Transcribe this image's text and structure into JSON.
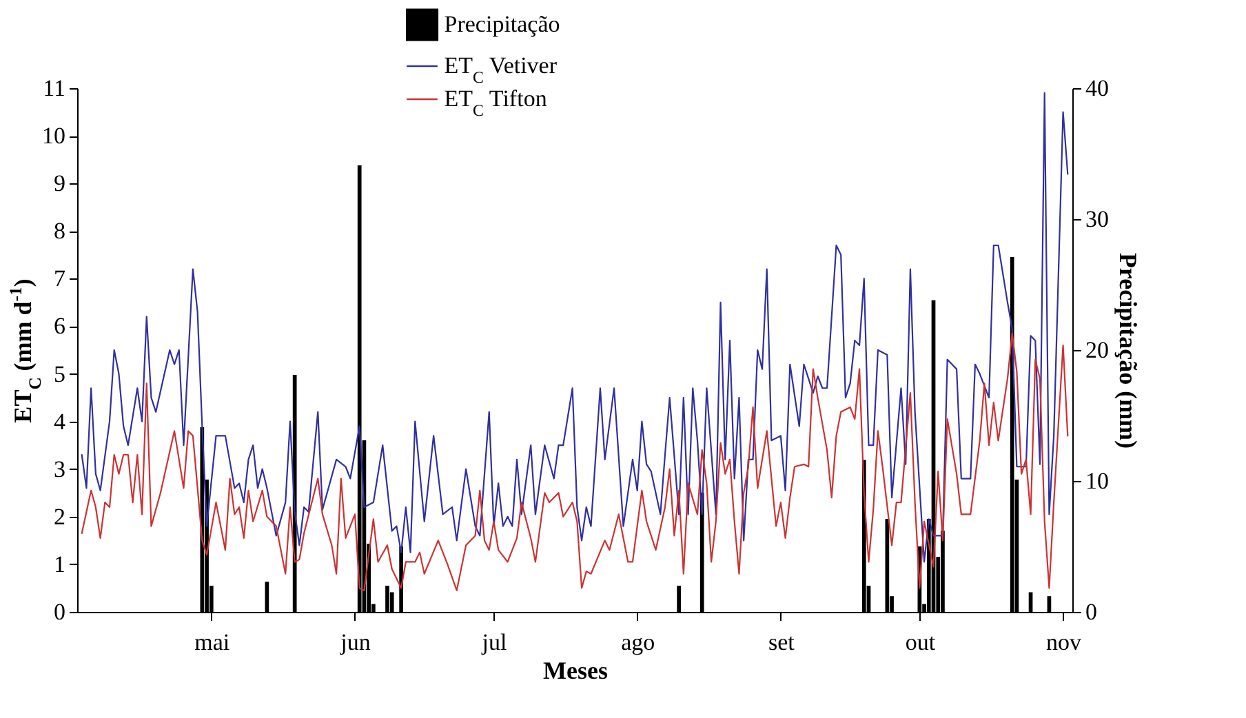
{
  "chart_data": {
    "type": "line",
    "xlabel": "Meses",
    "ylabel": "ET$_{C}$ (mm d$^{-1}$)",
    "y2label": "Precipitação (mm)",
    "xlim": [
      "--04-02",
      "--11-03"
    ],
    "xticks": [
      {
        "value": "--05-01",
        "label": "mai"
      },
      {
        "value": "--06-01",
        "label": "jun"
      },
      {
        "value": "--07-01",
        "label": "jul"
      },
      {
        "value": "--08-01",
        "label": "ago"
      },
      {
        "value": "--09-01",
        "label": "set"
      },
      {
        "value": "--10-01",
        "label": "out"
      },
      {
        "value": "--11-01",
        "label": "nov"
      }
    ],
    "ylim": [
      0,
      11
    ],
    "yticks": [
      0,
      1,
      2,
      3,
      4,
      5,
      6,
      7,
      8,
      9,
      10,
      11
    ],
    "y2lim": [
      0,
      40
    ],
    "y2ticks": [
      0,
      10,
      20,
      30,
      40
    ],
    "legend": "top",
    "marker": "none",
    "line_style": "solid",
    "series": [
      {
        "name": "Precipitação",
        "type": "bar",
        "axis": "y2",
        "color": "#000000",
        "x": [
          "--04-29",
          "--04-30",
          "--05-01",
          "--05-13",
          "--05-19",
          "--06-02",
          "--06-03",
          "--06-04",
          "--06-05",
          "--06-08",
          "--06-09",
          "--06-11",
          "--08-10",
          "--08-15",
          "--09-19",
          "--09-20",
          "--09-24",
          "--09-25",
          "--10-01",
          "--10-02",
          "--10-03",
          "--10-04",
          "--10-05",
          "--10-06",
          "--10-21",
          "--10-22",
          "--10-25",
          "--10-29"
        ],
        "values": [
          14.1,
          10.1,
          2.0,
          2.3,
          18.1,
          34.1,
          13.1,
          5.2,
          0.6,
          2.0,
          1.5,
          5.0,
          2.0,
          9.1,
          11.6,
          2.0,
          7.1,
          1.2,
          5.0,
          0.6,
          7.1,
          23.8,
          4.2,
          6.2,
          27.1,
          10.1,
          1.5,
          1.2
        ]
      },
      {
        "name": "ET$_{C}$ Vetiver",
        "color": "#3030a0",
        "x": [
          "--04-03",
          "--04-04",
          "--04-05",
          "--04-06",
          "--04-07",
          "--04-09",
          "--04-10",
          "--04-11",
          "--04-12",
          "--04-13",
          "--04-15",
          "--04-16",
          "--04-17",
          "--04-18",
          "--04-19",
          "--04-22",
          "--04-23",
          "--04-24",
          "--04-25",
          "--04-27",
          "--04-28",
          "--04-29",
          "--04-30",
          "--05-02",
          "--05-04",
          "--05-06",
          "--05-07",
          "--05-08",
          "--05-09",
          "--05-10",
          "--05-11",
          "--05-12",
          "--05-13",
          "--05-15",
          "--05-17",
          "--05-18",
          "--05-19",
          "--05-20",
          "--05-21",
          "--05-22",
          "--05-24",
          "--05-25",
          "--05-28",
          "--05-30",
          "--05-31",
          "--06-02",
          "--06-03",
          "--06-05",
          "--06-07",
          "--06-09",
          "--06-10",
          "--06-11",
          "--06-12",
          "--06-13",
          "--06-14",
          "--06-16",
          "--06-18",
          "--06-20",
          "--06-22",
          "--06-23",
          "--06-25",
          "--06-27",
          "--06-28",
          "--06-30",
          "--07-01",
          "--07-02",
          "--07-03",
          "--07-04",
          "--07-05",
          "--07-06",
          "--07-07",
          "--07-09",
          "--07-10",
          "--07-12",
          "--07-14",
          "--07-15",
          "--07-16",
          "--07-18",
          "--07-19",
          "--07-20",
          "--07-21",
          "--07-22",
          "--07-24",
          "--07-25",
          "--07-27",
          "--07-29",
          "--07-31",
          "--08-01",
          "--08-02",
          "--08-03",
          "--08-04",
          "--08-06",
          "--08-07",
          "--08-08",
          "--08-10",
          "--08-11",
          "--08-12",
          "--08-13",
          "--08-14",
          "--08-15",
          "--08-16",
          "--08-18",
          "--08-19",
          "--08-20",
          "--08-21",
          "--08-22",
          "--08-23",
          "--08-24",
          "--08-25",
          "--08-26",
          "--08-27",
          "--08-28",
          "--08-29",
          "--08-30",
          "--09-01",
          "--09-02",
          "--09-03",
          "--09-05",
          "--09-06",
          "--09-08",
          "--09-09",
          "--09-10",
          "--09-11",
          "--09-13",
          "--09-14",
          "--09-15",
          "--09-16",
          "--09-17",
          "--09-18",
          "--09-19",
          "--09-20",
          "--09-21",
          "--09-22",
          "--09-24",
          "--09-25",
          "--09-27",
          "--09-28",
          "--09-29",
          "--09-30",
          "--10-02",
          "--10-03",
          "--10-04",
          "--10-06",
          "--10-07",
          "--10-09",
          "--10-10",
          "--10-12",
          "--10-13",
          "--10-14",
          "--10-16",
          "--10-17",
          "--10-18",
          "--10-20",
          "--10-21",
          "--10-22",
          "--10-24",
          "--10-25",
          "--10-26",
          "--10-27",
          "--10-28",
          "--10-29",
          "--10-30",
          "--11-01",
          "--11-02"
        ],
        "values": [
          3.3,
          2.6,
          4.7,
          2.9,
          2.55,
          4.0,
          5.5,
          5.0,
          3.9,
          3.5,
          4.7,
          4.0,
          6.2,
          4.5,
          4.2,
          5.5,
          5.2,
          5.5,
          3.5,
          7.2,
          6.3,
          3.9,
          1.8,
          3.7,
          3.7,
          2.6,
          2.7,
          2.3,
          3.2,
          3.5,
          2.6,
          3.0,
          2.6,
          1.6,
          2.3,
          4.0,
          2.1,
          1.4,
          2.2,
          2.1,
          4.2,
          2.15,
          3.2,
          3.05,
          2.8,
          3.9,
          2.2,
          2.3,
          3.5,
          1.7,
          1.8,
          1.25,
          2.2,
          1.25,
          4.0,
          1.9,
          3.7,
          2.05,
          2.2,
          1.5,
          3.0,
          1.8,
          1.6,
          4.2,
          1.8,
          2.7,
          1.8,
          2.0,
          1.8,
          3.2,
          2.05,
          3.5,
          2.05,
          3.5,
          2.8,
          3.5,
          3.5,
          4.7,
          2.2,
          1.5,
          2.2,
          1.8,
          4.7,
          3.2,
          4.7,
          1.8,
          3.2,
          2.55,
          4.0,
          3.1,
          2.95,
          2.05,
          3.3,
          4.5,
          2.05,
          4.5,
          2.05,
          4.7,
          3.6,
          2.05,
          4.7,
          2.05,
          6.5,
          3.2,
          5.7,
          2.8,
          4.5,
          1.5,
          3.2,
          3.2,
          5.5,
          5.1,
          7.2,
          3.6,
          3.7,
          2.55,
          5.2,
          3.9,
          5.2,
          4.6,
          4.95,
          4.7,
          4.7,
          7.7,
          7.5,
          4.5,
          4.8,
          5.7,
          5.6,
          7.0,
          3.5,
          3.5,
          5.5,
          5.4,
          2.4,
          4.7,
          3.1,
          7.2,
          4.2,
          1.05,
          1.95,
          1.6,
          1.6,
          5.3,
          5.1,
          2.8,
          2.8,
          5.2,
          5.0,
          4.5,
          7.7,
          7.7,
          6.5,
          5.95,
          3.05,
          3.05,
          5.8,
          5.7,
          3.1,
          10.9,
          2.05,
          3.7,
          10.5,
          9.2
        ]
      },
      {
        "name": "ET$_{C}$ Tifton",
        "color": "#cc3333",
        "x": [
          "--04-03",
          "--04-05",
          "--04-06",
          "--04-07",
          "--04-08",
          "--04-09",
          "--04-10",
          "--04-11",
          "--04-12",
          "--04-13",
          "--04-14",
          "--04-15",
          "--04-16",
          "--04-17",
          "--04-18",
          "--04-20",
          "--04-23",
          "--04-25",
          "--04-26",
          "--04-27",
          "--04-29",
          "--04-30",
          "--05-02",
          "--05-04",
          "--05-05",
          "--05-06",
          "--05-07",
          "--05-08",
          "--05-09",
          "--05-10",
          "--05-12",
          "--05-13",
          "--05-15",
          "--05-16",
          "--05-17",
          "--05-18",
          "--05-19",
          "--05-20",
          "--05-21",
          "--05-24",
          "--05-25",
          "--05-27",
          "--05-28",
          "--05-29",
          "--05-30",
          "--06-01",
          "--06-02",
          "--06-03",
          "--06-05",
          "--06-06",
          "--06-08",
          "--06-09",
          "--06-11",
          "--06-12",
          "--06-14",
          "--06-15",
          "--06-16",
          "--06-19",
          "--06-21",
          "--06-23",
          "--06-25",
          "--06-27",
          "--06-28",
          "--06-29",
          "--06-30",
          "--07-01",
          "--07-02",
          "--07-04",
          "--07-06",
          "--07-07",
          "--07-09",
          "--07-10",
          "--07-12",
          "--07-13",
          "--07-15",
          "--07-16",
          "--07-18",
          "--07-19",
          "--07-20",
          "--07-21",
          "--07-22",
          "--07-25",
          "--07-26",
          "--07-28",
          "--07-30",
          "--07-31",
          "--08-02",
          "--08-03",
          "--08-05",
          "--08-07",
          "--08-08",
          "--08-09",
          "--08-10",
          "--08-11",
          "--08-12",
          "--08-14",
          "--08-15",
          "--08-16",
          "--08-17",
          "--08-18",
          "--08-19",
          "--08-20",
          "--08-21",
          "--08-22",
          "--08-23",
          "--08-24",
          "--08-25",
          "--08-26",
          "--08-27",
          "--08-29",
          "--08-31",
          "--09-01",
          "--09-02",
          "--09-03",
          "--09-04",
          "--09-06",
          "--09-07",
          "--09-08",
          "--09-09",
          "--09-11",
          "--09-12",
          "--09-13",
          "--09-14",
          "--09-16",
          "--09-17",
          "--09-18",
          "--09-19",
          "--09-20",
          "--09-21",
          "--09-22",
          "--09-23",
          "--09-25",
          "--09-26",
          "--09-27",
          "--09-29",
          "--09-30",
          "--10-01",
          "--10-02",
          "--10-04",
          "--10-05",
          "--10-06",
          "--10-07",
          "--10-09",
          "--10-10",
          "--10-12",
          "--10-14",
          "--10-15",
          "--10-16",
          "--10-17",
          "--10-18",
          "--10-20",
          "--10-21",
          "--10-22",
          "--10-23",
          "--10-24",
          "--10-25",
          "--10-26",
          "--10-27",
          "--10-28",
          "--10-29",
          "--10-30",
          "--11-01",
          "--11-02"
        ],
        "values": [
          1.65,
          2.55,
          2.2,
          1.55,
          2.3,
          2.2,
          3.3,
          2.9,
          3.3,
          3.3,
          2.3,
          3.3,
          2.05,
          4.8,
          1.8,
          2.5,
          3.8,
          2.6,
          3.8,
          3.7,
          1.5,
          1.2,
          2.3,
          1.3,
          2.8,
          2.05,
          2.2,
          1.55,
          2.55,
          1.9,
          2.55,
          2.0,
          1.8,
          1.3,
          0.8,
          2.2,
          1.05,
          1.1,
          1.65,
          2.8,
          2.05,
          1.4,
          0.8,
          2.8,
          1.55,
          2.05,
          0.5,
          0.45,
          1.95,
          1.05,
          1.4,
          0.9,
          0.5,
          1.05,
          1.05,
          1.25,
          0.8,
          1.5,
          1.0,
          0.45,
          1.4,
          1.6,
          2.55,
          1.5,
          1.3,
          1.9,
          1.3,
          1.05,
          1.55,
          2.3,
          1.55,
          1.05,
          2.5,
          2.3,
          2.5,
          2.0,
          2.3,
          1.9,
          0.5,
          0.85,
          0.8,
          1.5,
          1.3,
          2.05,
          1.05,
          1.05,
          2.55,
          1.9,
          1.3,
          2.2,
          3.0,
          1.6,
          2.55,
          0.8,
          2.7,
          2.05,
          3.4,
          2.7,
          1.05,
          1.9,
          3.55,
          2.9,
          3.2,
          1.9,
          0.8,
          2.5,
          3.05,
          4.3,
          2.6,
          3.8,
          1.8,
          2.3,
          1.55,
          2.4,
          3.05,
          3.1,
          3.05,
          5.1,
          4.5,
          3.4,
          2.4,
          3.7,
          4.2,
          4.3,
          4.05,
          5.1,
          2.5,
          1.05,
          2.15,
          3.8,
          3.05,
          1.4,
          2.3,
          2.3,
          4.6,
          2.3,
          0.5,
          1.9,
          0.95,
          2.95,
          1.5,
          4.05,
          2.9,
          2.05,
          2.05,
          3.6,
          4.8,
          3.5,
          4.4,
          3.6,
          4.9,
          5.85,
          5.05,
          2.9,
          3.2,
          2.05,
          5.3,
          4.9,
          1.9,
          0.5,
          2.3,
          5.6,
          3.7
        ]
      }
    ]
  }
}
